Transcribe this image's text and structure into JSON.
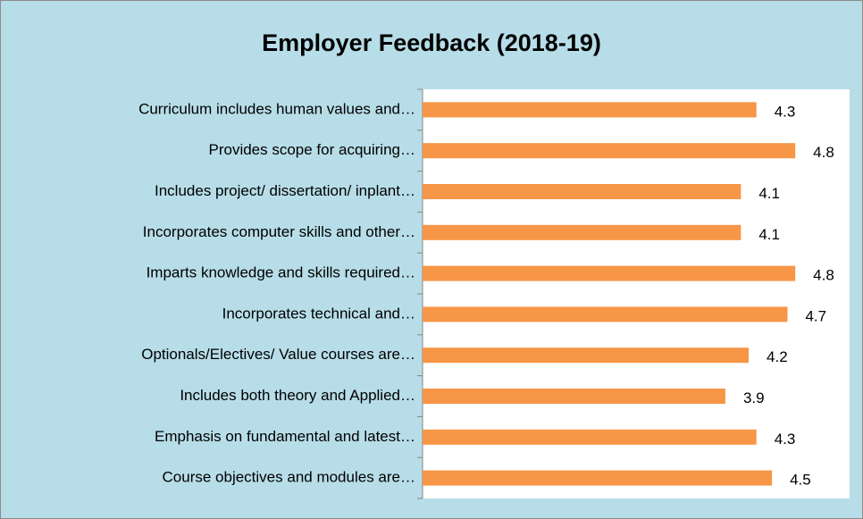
{
  "chart_data": {
    "type": "barh",
    "title": "Employer Feedback (2018-19)",
    "categories": [
      "Curriculum includes human values and…",
      "Provides scope for acquiring…",
      "Includes project/ dissertation/ inplant…",
      "Incorporates computer skills and other…",
      "Imparts knowledge and skills required…",
      "Incorporates technical and…",
      "Optionals/Electives/ Value courses are…",
      "Includes both theory and Applied…",
      "Emphasis on fundamental and latest…",
      "Course objectives and modules are…"
    ],
    "values": [
      4.3,
      4.8,
      4.1,
      4.1,
      4.8,
      4.7,
      4.2,
      3.9,
      4.3,
      4.5
    ],
    "color": "#f79646",
    "xlim": [
      0,
      5.5
    ]
  }
}
